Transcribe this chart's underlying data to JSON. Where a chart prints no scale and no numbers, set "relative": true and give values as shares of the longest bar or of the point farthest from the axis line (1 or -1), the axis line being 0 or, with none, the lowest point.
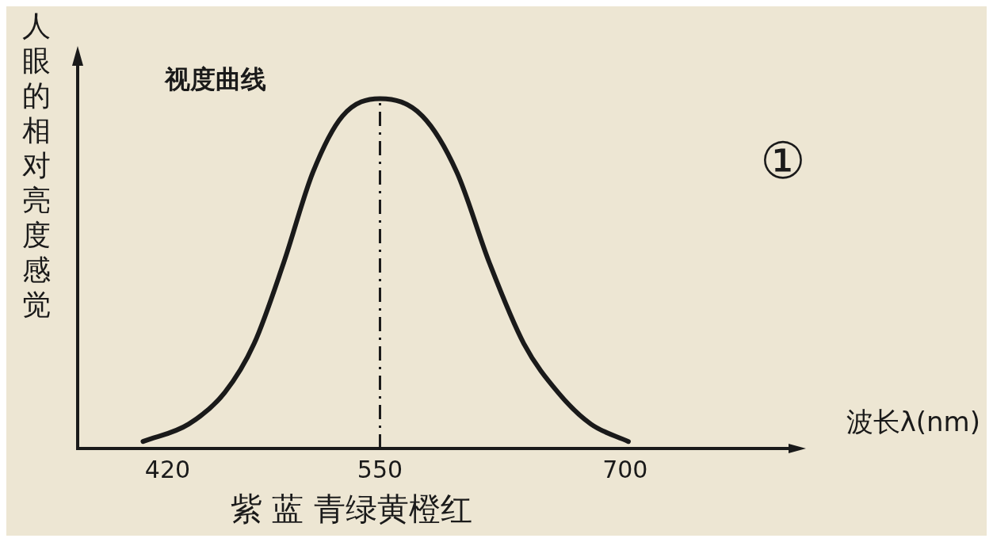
{
  "chart_data": {
    "type": "line",
    "relative": true,
    "xlabel": "波长λ(nm)",
    "ylabel": "人眼的相对亮度感觉",
    "annotations": [
      "视度曲线",
      "①",
      "紫 蓝 青绿黄橙红"
    ],
    "x": [
      405,
      433,
      455,
      473,
      491,
      509,
      527,
      550,
      576,
      597,
      617,
      638,
      659,
      679,
      702
    ],
    "xlim": [
      365,
      800
    ],
    "xticks": [
      420,
      550,
      700
    ],
    "grid": false,
    "legend": false,
    "marker": "none",
    "series": [
      {
        "color": "#1a1a1a",
        "values": [
          0.02,
          0.07,
          0.16,
          0.3,
          0.53,
          0.79,
          0.95,
          1,
          0.95,
          0.79,
          0.53,
          0.3,
          0.16,
          0.07,
          0.02
        ]
      }
    ],
    "ref_lines": [
      {
        "axis": "x",
        "value": 550,
        "line_style": "dashed",
        "color": "#1a1a1a"
      }
    ]
  }
}
